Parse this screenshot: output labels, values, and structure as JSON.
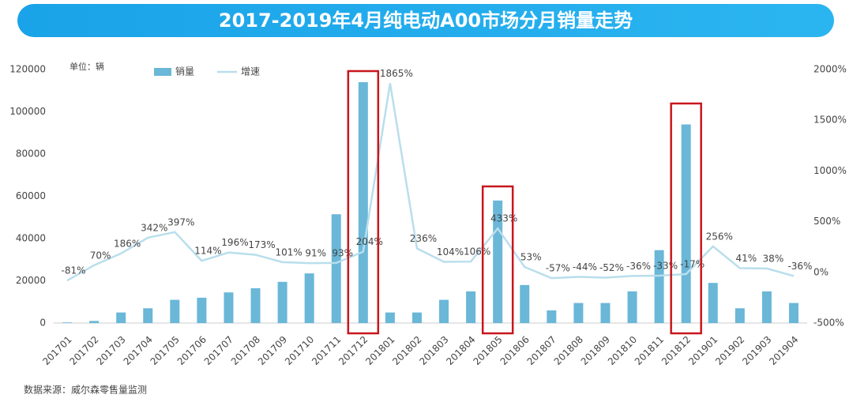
{
  "chart_data": {
    "type": "bar_line",
    "title": "2017-2019年4月纯电动A00市场分月销量走势",
    "unit_note": "单位：辆",
    "source": "数据来源：威尔森零售量监测",
    "categories": [
      "201701",
      "201702",
      "201703",
      "201704",
      "201705",
      "201706",
      "201707",
      "201708",
      "201709",
      "201710",
      "201711",
      "201712",
      "201801",
      "201802",
      "201803",
      "201804",
      "201805",
      "201806",
      "201807",
      "201808",
      "201809",
      "201810",
      "201811",
      "201812",
      "201901",
      "201902",
      "201903",
      "201904"
    ],
    "series": [
      {
        "name": "销量",
        "color": "#6ab7d8",
        "values": [
          300,
          1000,
          5000,
          7000,
          11000,
          12000,
          14500,
          16500,
          19500,
          23500,
          51500,
          114000,
          5000,
          5000,
          11000,
          15000,
          58000,
          18000,
          6000,
          9500,
          9500,
          15000,
          34500,
          94000,
          19000,
          7000,
          15000,
          9500
        ]
      },
      {
        "name": "增速",
        "color": "#b9deec",
        "axis": "y2",
        "values": [
          -81,
          70,
          186,
          342,
          397,
          114,
          196,
          173,
          101,
          91,
          93,
          204,
          1865,
          236,
          104,
          106,
          433,
          53,
          -57,
          -44,
          -52,
          -36,
          -33,
          -17,
          256,
          41,
          38,
          -36
        ],
        "value_labels": [
          "-81%",
          "70%",
          "186%",
          "342%",
          "397%",
          "114%",
          "196%",
          "173%",
          "101%",
          "91%",
          "93%",
          "204%",
          "1865%",
          "236%",
          "104%",
          "106%",
          "433%",
          "53%",
          "-57%",
          "-44%",
          "-52%",
          "-36%",
          "-33%",
          "-17%",
          "256%",
          "41%",
          "38%",
          "-36%"
        ]
      }
    ],
    "ylim": [
      0,
      120000
    ],
    "yticks": [
      0,
      20000,
      40000,
      60000,
      80000,
      100000,
      120000
    ],
    "y2lim": [
      -500,
      2000
    ],
    "y2ticks": [
      {
        "value": -500,
        "label": "-500%"
      },
      {
        "value": 0,
        "label": "0%"
      },
      {
        "value": 500,
        "label": "500%"
      },
      {
        "value": 1000,
        "label": "1000%"
      },
      {
        "value": 1500,
        "label": "1500%"
      },
      {
        "value": 2000,
        "label": "2000%"
      }
    ],
    "legend": "top-left"
  }
}
